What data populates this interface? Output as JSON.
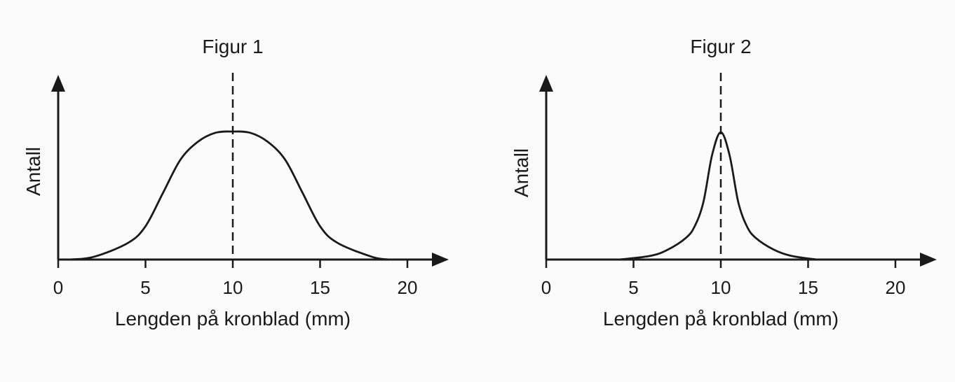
{
  "chart_data": [
    {
      "type": "line",
      "title": "Figur 1",
      "xlabel": "Lengden på kronblad (mm)",
      "ylabel": "Antall",
      "x_ticks": [
        "0",
        "5",
        "10",
        "15",
        "20"
      ],
      "xlim": [
        0,
        20
      ],
      "grid": false,
      "mean_line_x": 10,
      "series": [
        {
          "x": [
            0.5,
            2,
            4,
            5,
            6,
            7,
            8,
            9,
            10,
            11,
            12,
            13,
            14,
            15,
            16,
            18,
            19
          ],
          "values": [
            0,
            0.02,
            0.13,
            0.26,
            0.52,
            0.78,
            0.92,
            0.99,
            1.0,
            0.99,
            0.92,
            0.78,
            0.52,
            0.26,
            0.13,
            0.02,
            0
          ]
        }
      ]
    },
    {
      "type": "line",
      "title": "Figur 2",
      "xlabel": "Lengden på kronblad (mm)",
      "ylabel": "Antall",
      "x_ticks": [
        "0",
        "5",
        "10",
        "15",
        "20"
      ],
      "xlim": [
        0,
        20
      ],
      "grid": false,
      "mean_line_x": 10,
      "series": [
        {
          "x": [
            4.2,
            6,
            7,
            8,
            8.5,
            9,
            9.5,
            10,
            10.5,
            11,
            11.5,
            12,
            13,
            14,
            15.5
          ],
          "values": [
            0,
            0.03,
            0.08,
            0.17,
            0.26,
            0.45,
            0.82,
            1.0,
            0.82,
            0.45,
            0.26,
            0.17,
            0.08,
            0.03,
            0
          ]
        }
      ]
    }
  ]
}
